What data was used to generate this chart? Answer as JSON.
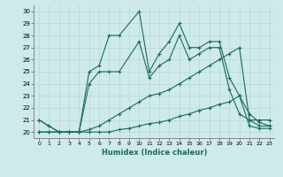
{
  "xlabel": "Humidex (Indice chaleur)",
  "ylabel": "",
  "bg_color": "#ceeaea",
  "line_color": "#1a6b5a",
  "xlim": [
    -0.5,
    23.5
  ],
  "ylim": [
    19.5,
    30.5
  ],
  "xticks": [
    0,
    1,
    2,
    3,
    4,
    5,
    6,
    7,
    8,
    9,
    10,
    11,
    12,
    13,
    14,
    15,
    16,
    17,
    18,
    19,
    20,
    21,
    22,
    23
  ],
  "yticks": [
    20,
    21,
    22,
    23,
    24,
    25,
    26,
    27,
    28,
    29,
    30
  ],
  "series": [
    {
      "x": [
        0,
        1,
        2,
        3,
        4,
        5,
        6,
        7,
        8,
        10,
        11,
        12,
        13,
        14,
        15,
        16,
        17,
        18,
        19,
        20,
        21,
        22,
        23
      ],
      "y": [
        21.0,
        20.5,
        20.0,
        20.0,
        20.0,
        25.0,
        25.5,
        28.0,
        28.0,
        30.0,
        25.0,
        26.5,
        27.5,
        29.0,
        27.0,
        27.0,
        27.5,
        27.5,
        24.5,
        23.0,
        21.5,
        20.8,
        20.5
      ]
    },
    {
      "x": [
        0,
        1,
        2,
        3,
        4,
        5,
        6,
        7,
        8,
        10,
        11,
        12,
        13,
        14,
        15,
        16,
        17,
        18,
        19,
        20,
        21,
        22,
        23
      ],
      "y": [
        21.0,
        20.5,
        20.0,
        20.0,
        20.0,
        24.0,
        25.0,
        25.0,
        25.0,
        27.5,
        24.5,
        25.5,
        26.0,
        28.0,
        26.0,
        26.5,
        27.0,
        27.0,
        23.5,
        21.5,
        21.0,
        20.5,
        20.5
      ]
    },
    {
      "x": [
        0,
        1,
        2,
        3,
        4,
        5,
        6,
        7,
        8,
        9,
        10,
        11,
        12,
        13,
        14,
        15,
        16,
        17,
        18,
        19,
        20,
        21,
        22,
        23
      ],
      "y": [
        20.0,
        20.0,
        20.0,
        20.0,
        20.0,
        20.2,
        20.5,
        21.0,
        21.5,
        22.0,
        22.5,
        23.0,
        23.2,
        23.5,
        24.0,
        24.5,
        25.0,
        25.5,
        26.0,
        26.5,
        27.0,
        21.0,
        21.0,
        21.0
      ]
    },
    {
      "x": [
        0,
        1,
        2,
        3,
        4,
        5,
        6,
        7,
        8,
        9,
        10,
        11,
        12,
        13,
        14,
        15,
        16,
        17,
        18,
        19,
        20,
        21,
        22,
        23
      ],
      "y": [
        20.0,
        20.0,
        20.0,
        20.0,
        20.0,
        20.0,
        20.0,
        20.0,
        20.2,
        20.3,
        20.5,
        20.7,
        20.8,
        21.0,
        21.3,
        21.5,
        21.8,
        22.0,
        22.3,
        22.5,
        23.0,
        20.5,
        20.3,
        20.3
      ]
    }
  ]
}
